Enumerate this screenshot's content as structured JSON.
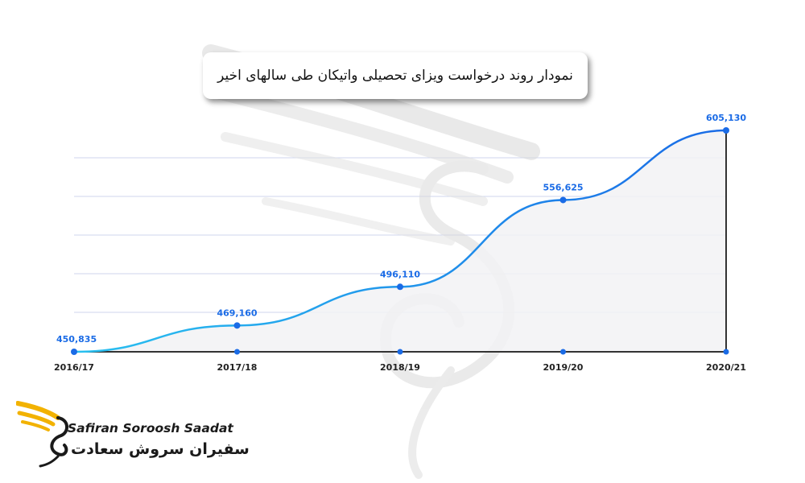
{
  "chart_data": {
    "type": "area",
    "title": "نمودار روند درخواست ویزای تحصیلی واتیکان طی سالهای اخیر",
    "categories": [
      "2016/17",
      "2017/18",
      "2018/19",
      "2019/20",
      "2020/21"
    ],
    "values": [
      450835,
      469160,
      496110,
      556625,
      605130
    ],
    "value_labels": [
      "450,835",
      "469,160",
      "496,110",
      "556,625",
      "605,130"
    ],
    "ylim": [
      450835,
      605130
    ],
    "grid": true,
    "colors": {
      "line_start": "#29c1f0",
      "line_end": "#1a6be6",
      "marker": "#1a6be6",
      "label": "#1a6be6",
      "fill": "#f2f2f4",
      "axis": "#333333",
      "grid": "#cfd6ee"
    }
  },
  "logo": {
    "name_en": "Safiran Soroosh Saadat",
    "name_fa": "سفیران سروش سعادت",
    "colors": {
      "wing": "#f2b200",
      "text": "#1a1a1a"
    }
  }
}
